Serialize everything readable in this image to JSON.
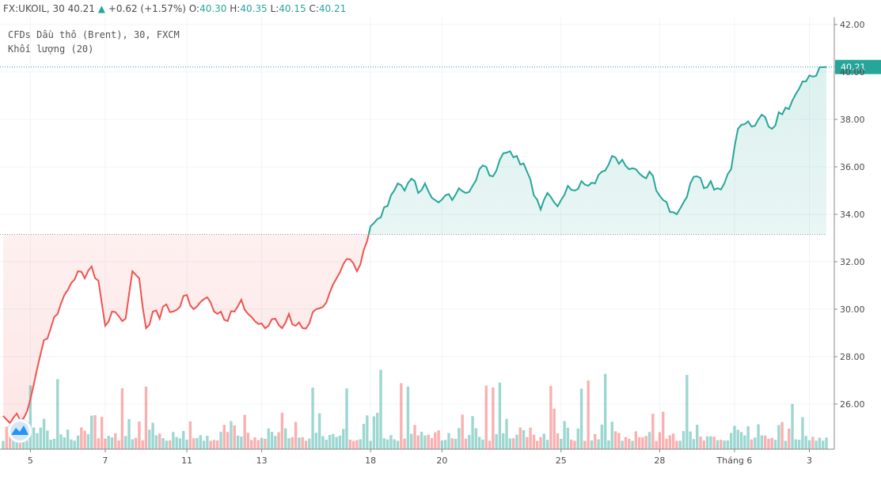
{
  "header": {
    "symbol": "FX:UKOIL, 30",
    "last": "40.21",
    "change": "+0.62 (+1.57%)",
    "o_label": "O:",
    "o": "40.30",
    "h_label": "H:",
    "h": "40.35",
    "l_label": "L:",
    "l": "40.15",
    "c_label": "C:",
    "c": "40.21"
  },
  "legend": {
    "line1": "CFDs Dầu thô (Brent), 30, FXCM",
    "line2": "Khối lượng (20)"
  },
  "colors": {
    "up": "#26a69a",
    "down": "#ef5350",
    "grid": "#f0f3fa"
  },
  "chart_data": {
    "type": "area",
    "baseline": 33.15,
    "last_price": 40.21,
    "last_price_label": "40.21",
    "ylim": [
      24.1,
      42.3
    ],
    "yticks": [
      26,
      28,
      30,
      32,
      34,
      36,
      38,
      40,
      42
    ],
    "ytick_labels": [
      "26.00",
      "28.00",
      "30.00",
      "32.00",
      "34.00",
      "36.00",
      "38.00",
      "40.00",
      "42.00"
    ],
    "xticks": [
      {
        "label": "5",
        "i": 8
      },
      {
        "label": "7",
        "i": 30
      },
      {
        "label": "11",
        "i": 54
      },
      {
        "label": "13",
        "i": 76
      },
      {
        "label": "18",
        "i": 108
      },
      {
        "label": "20",
        "i": 129
      },
      {
        "label": "25",
        "i": 164
      },
      {
        "label": "28",
        "i": 193
      },
      {
        "label": "Tháng 6",
        "i": 215
      },
      {
        "label": "3",
        "i": 237
      }
    ],
    "n": 243,
    "price_anchors": [
      [
        0,
        25.5
      ],
      [
        2,
        25.2
      ],
      [
        4,
        25.6
      ],
      [
        6,
        25.4
      ],
      [
        8,
        26.2
      ],
      [
        10,
        27.5
      ],
      [
        12,
        28.7
      ],
      [
        14,
        29.2
      ],
      [
        16,
        29.8
      ],
      [
        18,
        30.6
      ],
      [
        20,
        31.1
      ],
      [
        22,
        31.6
      ],
      [
        24,
        31.3
      ],
      [
        26,
        31.8
      ],
      [
        28,
        31.2
      ],
      [
        30,
        29.3
      ],
      [
        32,
        29.9
      ],
      [
        34,
        29.7
      ],
      [
        36,
        29.6
      ],
      [
        38,
        31.6
      ],
      [
        40,
        31.3
      ],
      [
        42,
        29.2
      ],
      [
        44,
        29.9
      ],
      [
        46,
        29.6
      ],
      [
        48,
        30.2
      ],
      [
        50,
        29.9
      ],
      [
        52,
        30.1
      ],
      [
        54,
        30.6
      ],
      [
        56,
        30.0
      ],
      [
        58,
        30.3
      ],
      [
        60,
        30.5
      ],
      [
        62,
        29.9
      ],
      [
        64,
        29.9
      ],
      [
        66,
        29.5
      ],
      [
        68,
        29.9
      ],
      [
        70,
        30.4
      ],
      [
        72,
        29.8
      ],
      [
        74,
        29.5
      ],
      [
        76,
        29.4
      ],
      [
        78,
        29.3
      ],
      [
        80,
        29.6
      ],
      [
        82,
        29.2
      ],
      [
        84,
        29.8
      ],
      [
        86,
        29.3
      ],
      [
        88,
        29.2
      ],
      [
        90,
        29.4
      ],
      [
        92,
        30.0
      ],
      [
        94,
        30.1
      ],
      [
        96,
        30.7
      ],
      [
        98,
        31.3
      ],
      [
        100,
        31.9
      ],
      [
        102,
        32.1
      ],
      [
        104,
        31.6
      ],
      [
        106,
        32.5
      ],
      [
        108,
        33.5
      ],
      [
        110,
        33.8
      ],
      [
        112,
        34.3
      ],
      [
        114,
        34.8
      ],
      [
        116,
        35.3
      ],
      [
        118,
        35.0
      ],
      [
        120,
        35.5
      ],
      [
        122,
        34.9
      ],
      [
        124,
        35.3
      ],
      [
        126,
        34.7
      ],
      [
        128,
        34.5
      ],
      [
        130,
        34.8
      ],
      [
        132,
        34.6
      ],
      [
        134,
        35.1
      ],
      [
        136,
        34.9
      ],
      [
        138,
        35.2
      ],
      [
        140,
        35.9
      ],
      [
        142,
        36.0
      ],
      [
        144,
        35.6
      ],
      [
        146,
        36.3
      ],
      [
        148,
        36.6
      ],
      [
        150,
        36.4
      ],
      [
        152,
        36.1
      ],
      [
        154,
        35.8
      ],
      [
        156,
        34.8
      ],
      [
        158,
        34.2
      ],
      [
        160,
        34.9
      ],
      [
        162,
        34.5
      ],
      [
        164,
        34.6
      ],
      [
        166,
        35.2
      ],
      [
        168,
        35.0
      ],
      [
        170,
        35.4
      ],
      [
        172,
        35.2
      ],
      [
        174,
        35.3
      ],
      [
        176,
        35.8
      ],
      [
        178,
        36.1
      ],
      [
        180,
        36.4
      ],
      [
        182,
        36.3
      ],
      [
        184,
        35.9
      ],
      [
        186,
        35.9
      ],
      [
        188,
        35.6
      ],
      [
        190,
        35.8
      ],
      [
        192,
        35.0
      ],
      [
        194,
        34.6
      ],
      [
        196,
        34.1
      ],
      [
        198,
        34.0
      ],
      [
        200,
        34.5
      ],
      [
        202,
        35.3
      ],
      [
        204,
        35.6
      ],
      [
        206,
        35.1
      ],
      [
        208,
        35.4
      ],
      [
        210,
        35.1
      ],
      [
        212,
        35.3
      ],
      [
        214,
        35.9
      ],
      [
        216,
        37.6
      ],
      [
        218,
        37.8
      ],
      [
        220,
        37.7
      ],
      [
        222,
        38.0
      ],
      [
        224,
        38.1
      ],
      [
        226,
        37.6
      ],
      [
        228,
        38.3
      ],
      [
        230,
        38.5
      ],
      [
        232,
        38.8
      ],
      [
        234,
        39.3
      ],
      [
        236,
        39.6
      ],
      [
        238,
        39.8
      ],
      [
        240,
        40.2
      ],
      [
        242,
        40.21
      ]
    ],
    "volume_max": 28.6,
    "volume_note": "Khối lượng (20)"
  }
}
